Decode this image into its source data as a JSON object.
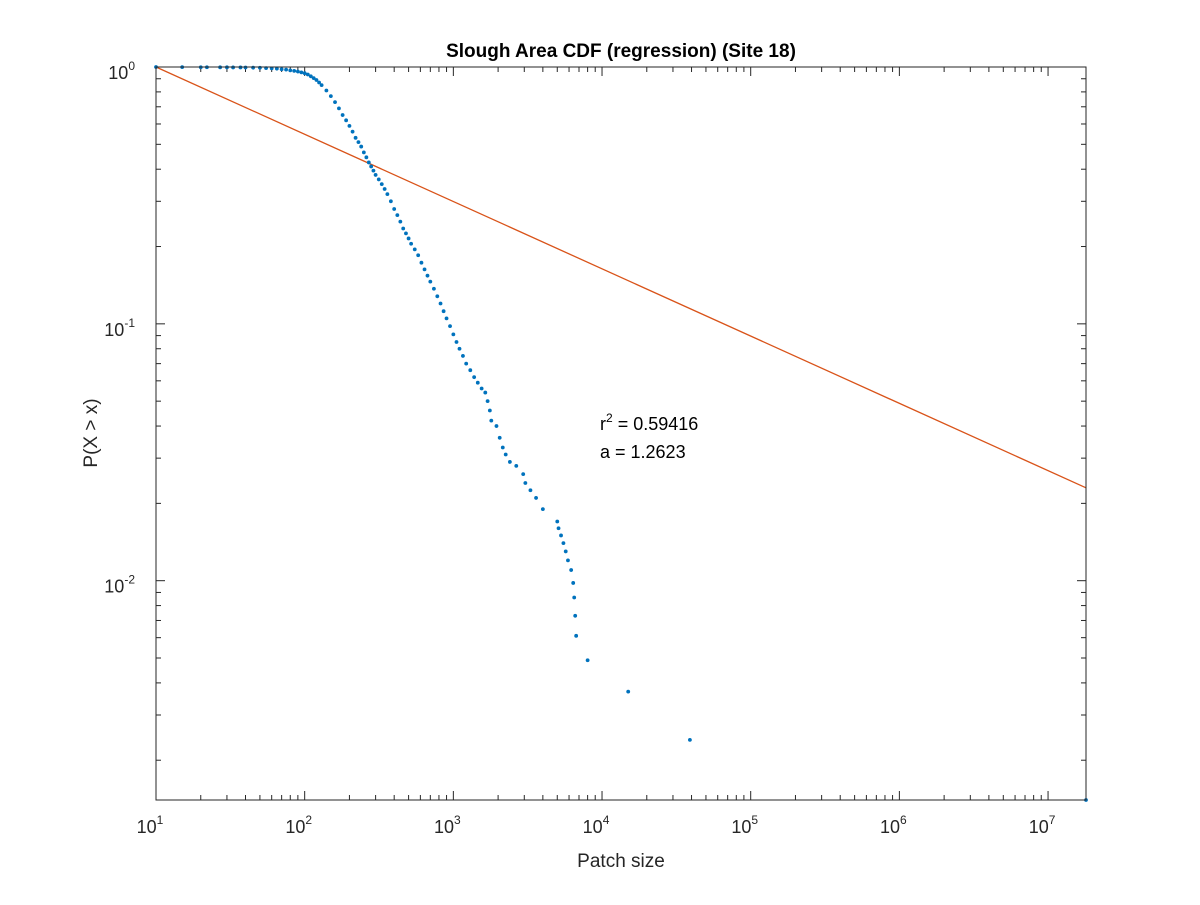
{
  "chart_data": {
    "type": "scatter",
    "title": "Slough Area CDF (regression) (Site 18)",
    "xlabel": "Patch size",
    "ylabel": "P(X > x)",
    "xscale": "log",
    "yscale": "log",
    "xlim": [
      10,
      18000000
    ],
    "ylim": [
      0.0014,
      1
    ],
    "grid": false,
    "legend": "none",
    "x_ticks": [
      {
        "base": "10",
        "exp": "1",
        "value": 10
      },
      {
        "base": "10",
        "exp": "2",
        "value": 100
      },
      {
        "base": "10",
        "exp": "3",
        "value": 1000
      },
      {
        "base": "10",
        "exp": "4",
        "value": 10000
      },
      {
        "base": "10",
        "exp": "5",
        "value": 100000
      },
      {
        "base": "10",
        "exp": "6",
        "value": 1000000
      },
      {
        "base": "10",
        "exp": "7",
        "value": 10000000
      }
    ],
    "y_ticks": [
      {
        "base": "10",
        "exp": "0",
        "value": 1
      },
      {
        "base": "10",
        "exp": "-1",
        "value": 0.1
      },
      {
        "base": "10",
        "exp": "-2",
        "value": 0.01
      }
    ],
    "series": [
      {
        "type": "scatter",
        "color": "#0072BD",
        "points": [
          [
            10,
            1.0
          ],
          [
            15,
            0.999
          ],
          [
            20,
            0.998
          ],
          [
            22,
            0.998
          ],
          [
            27,
            0.997
          ],
          [
            30,
            0.997
          ],
          [
            33,
            0.996
          ],
          [
            37,
            0.996
          ],
          [
            40,
            0.995
          ],
          [
            45,
            0.994
          ],
          [
            50,
            0.993
          ],
          [
            55,
            0.99
          ],
          [
            60,
            0.988
          ],
          [
            65,
            0.985
          ],
          [
            70,
            0.98
          ],
          [
            75,
            0.977
          ],
          [
            80,
            0.97
          ],
          [
            85,
            0.966
          ],
          [
            90,
            0.96
          ],
          [
            95,
            0.953
          ],
          [
            100,
            0.946
          ],
          [
            105,
            0.935
          ],
          [
            110,
            0.92
          ],
          [
            115,
            0.905
          ],
          [
            120,
            0.89
          ],
          [
            125,
            0.87
          ],
          [
            130,
            0.85
          ],
          [
            140,
            0.81
          ],
          [
            150,
            0.77
          ],
          [
            160,
            0.73
          ],
          [
            170,
            0.69
          ],
          [
            180,
            0.65
          ],
          [
            190,
            0.62
          ],
          [
            200,
            0.59
          ],
          [
            210,
            0.56
          ],
          [
            220,
            0.53
          ],
          [
            230,
            0.51
          ],
          [
            240,
            0.49
          ],
          [
            250,
            0.465
          ],
          [
            260,
            0.445
          ],
          [
            270,
            0.425
          ],
          [
            280,
            0.41
          ],
          [
            290,
            0.395
          ],
          [
            300,
            0.38
          ],
          [
            315,
            0.365
          ],
          [
            330,
            0.35
          ],
          [
            345,
            0.335
          ],
          [
            360,
            0.32
          ],
          [
            380,
            0.3
          ],
          [
            400,
            0.28
          ],
          [
            420,
            0.265
          ],
          [
            440,
            0.25
          ],
          [
            460,
            0.235
          ],
          [
            480,
            0.225
          ],
          [
            500,
            0.215
          ],
          [
            520,
            0.205
          ],
          [
            550,
            0.195
          ],
          [
            580,
            0.185
          ],
          [
            610,
            0.173
          ],
          [
            640,
            0.163
          ],
          [
            670,
            0.154
          ],
          [
            700,
            0.146
          ],
          [
            740,
            0.137
          ],
          [
            780,
            0.128
          ],
          [
            820,
            0.12
          ],
          [
            860,
            0.112
          ],
          [
            900,
            0.105
          ],
          [
            950,
            0.098
          ],
          [
            1000,
            0.091
          ],
          [
            1050,
            0.085
          ],
          [
            1100,
            0.08
          ],
          [
            1160,
            0.075
          ],
          [
            1220,
            0.07
          ],
          [
            1300,
            0.066
          ],
          [
            1380,
            0.062
          ],
          [
            1460,
            0.059
          ],
          [
            1550,
            0.056
          ],
          [
            1640,
            0.054
          ],
          [
            1700,
            0.05
          ],
          [
            1760,
            0.046
          ],
          [
            1800,
            0.042
          ],
          [
            1950,
            0.04
          ],
          [
            2050,
            0.036
          ],
          [
            2150,
            0.033
          ],
          [
            2250,
            0.031
          ],
          [
            2400,
            0.029
          ],
          [
            2650,
            0.028
          ],
          [
            2950,
            0.026
          ],
          [
            3050,
            0.024
          ],
          [
            3300,
            0.0225
          ],
          [
            3600,
            0.021
          ],
          [
            4000,
            0.019
          ],
          [
            5000,
            0.017
          ],
          [
            5100,
            0.016
          ],
          [
            5300,
            0.015
          ],
          [
            5500,
            0.014
          ],
          [
            5700,
            0.013
          ],
          [
            5900,
            0.012
          ],
          [
            6200,
            0.011
          ],
          [
            6400,
            0.0098
          ],
          [
            6500,
            0.0086
          ],
          [
            6600,
            0.0073
          ],
          [
            6700,
            0.0061
          ],
          [
            8000,
            0.0049
          ],
          [
            15000,
            0.0037
          ],
          [
            39000,
            0.0024
          ],
          [
            18000000,
            0.0014
          ]
        ]
      },
      {
        "type": "line",
        "color": "#D95319",
        "points": [
          [
            10,
            1.0
          ],
          [
            18000000,
            0.023
          ]
        ]
      }
    ],
    "annotations": {
      "r2_prefix": "r",
      "r2_sup": "2",
      "r2_value": " = 0.59416",
      "a_text": "a = 1.2623"
    }
  }
}
